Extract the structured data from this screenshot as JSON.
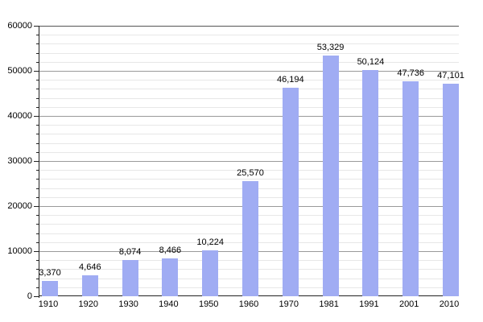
{
  "chart_data": {
    "type": "bar",
    "title": "",
    "xlabel": "",
    "ylabel": "",
    "categories": [
      "1910",
      "1920",
      "1930",
      "1940",
      "1950",
      "1960",
      "1970",
      "1981",
      "1991",
      "2001",
      "2010"
    ],
    "values": [
      3370,
      4646,
      8074,
      8466,
      10224,
      25570,
      46194,
      53329,
      50124,
      47736,
      47101
    ],
    "value_labels": [
      "3,370",
      "4,646",
      "8,074",
      "8,466",
      "10,224",
      "25,570",
      "46,194",
      "53,329",
      "50,124",
      "47,736",
      "47,101"
    ],
    "ylim": [
      0,
      60000
    ],
    "y_major_step": 10000,
    "y_minor_step": 2000,
    "y_tick_labels": [
      "0",
      "10000",
      "20000",
      "30000",
      "40000",
      "50000",
      "60000"
    ],
    "grid": "major-and-minor-horizontal",
    "legend": "none",
    "colors": {
      "bar_fill": "#a0acf3",
      "major_grid": "#9a9a9a",
      "minor_grid": "#e7e7e7",
      "axis": "#222222",
      "top_border": "#555555",
      "text": "#000000",
      "background": "#ffffff"
    }
  }
}
